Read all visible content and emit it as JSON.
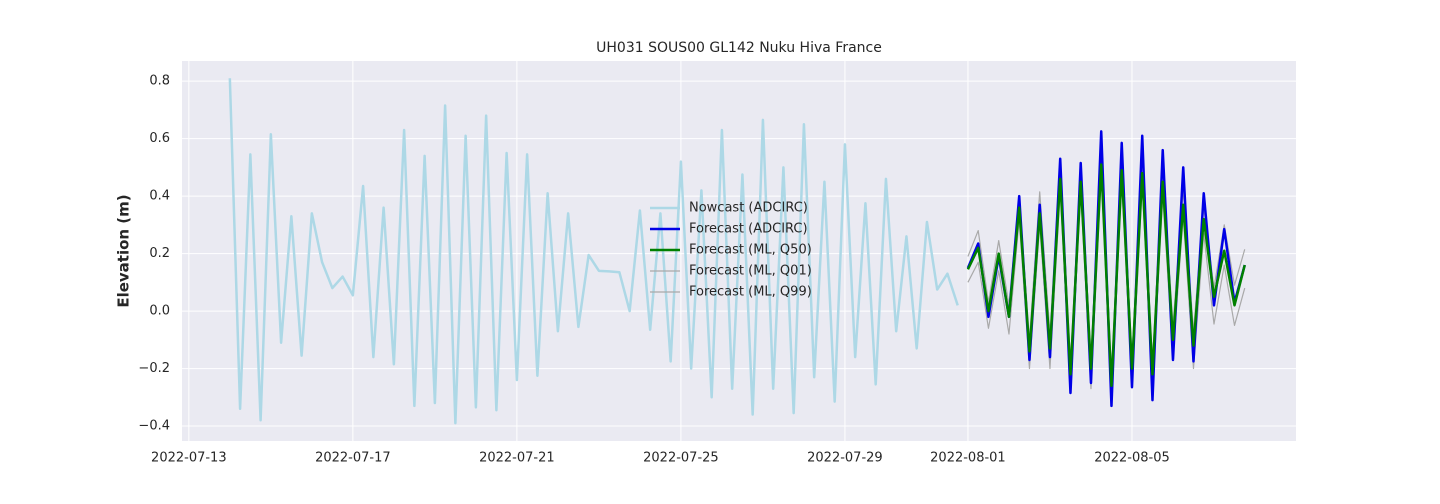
{
  "chart_data": {
    "type": "line",
    "title": "UH031 SOUS00 GL142 Nuku Hiva France",
    "ylabel": "Elevation (m)",
    "xlim": [
      "2022-07-12T20:00",
      "2022-08-09T00:00"
    ],
    "xticks": [
      "2022-07-13",
      "2022-07-17",
      "2022-07-21",
      "2022-07-25",
      "2022-07-29",
      "2022-08-01",
      "2022-08-05"
    ],
    "ylim": [
      -0.452,
      0.87
    ],
    "yticks": [
      {
        "value": -0.4,
        "label": "−0.4"
      },
      {
        "value": -0.2,
        "label": "−0.2"
      },
      {
        "value": 0,
        "label": "0.0"
      },
      0.2,
      0.4,
      0.6,
      0.8
    ],
    "grid": true,
    "legend": "center",
    "series": [
      {
        "name": "Nowcast (ADCIRC)",
        "color": "#add8e6",
        "linewidth": 2.5,
        "x": [
          "2022-07-14T00:00",
          "2022-07-14T06:00",
          "2022-07-14T12:00",
          "2022-07-14T18:00",
          "2022-07-15T00:00",
          "2022-07-15T06:00",
          "2022-07-15T12:00",
          "2022-07-15T18:00",
          "2022-07-16T00:00",
          "2022-07-16T06:00",
          "2022-07-16T12:00",
          "2022-07-16T18:00",
          "2022-07-17T00:00",
          "2022-07-17T06:00",
          "2022-07-17T12:00",
          "2022-07-17T18:00",
          "2022-07-18T00:00",
          "2022-07-18T06:00",
          "2022-07-18T12:00",
          "2022-07-18T18:00",
          "2022-07-19T00:00",
          "2022-07-19T06:00",
          "2022-07-19T12:00",
          "2022-07-19T18:00",
          "2022-07-20T00:00",
          "2022-07-20T06:00",
          "2022-07-20T12:00",
          "2022-07-20T18:00",
          "2022-07-21T00:00",
          "2022-07-21T06:00",
          "2022-07-21T12:00",
          "2022-07-21T18:00",
          "2022-07-22T00:00",
          "2022-07-22T06:00",
          "2022-07-22T12:00",
          "2022-07-22T18:00",
          "2022-07-23T00:00",
          "2022-07-23T06:00",
          "2022-07-23T12:00",
          "2022-07-23T18:00",
          "2022-07-24T00:00",
          "2022-07-24T06:00",
          "2022-07-24T12:00",
          "2022-07-24T18:00",
          "2022-07-25T00:00",
          "2022-07-25T06:00",
          "2022-07-25T12:00",
          "2022-07-25T18:00",
          "2022-07-26T00:00",
          "2022-07-26T06:00",
          "2022-07-26T12:00",
          "2022-07-26T18:00",
          "2022-07-27T00:00",
          "2022-07-27T06:00",
          "2022-07-27T12:00",
          "2022-07-27T18:00",
          "2022-07-28T00:00",
          "2022-07-28T06:00",
          "2022-07-28T12:00",
          "2022-07-28T18:00",
          "2022-07-29T00:00",
          "2022-07-29T06:00",
          "2022-07-29T12:00",
          "2022-07-29T18:00",
          "2022-07-30T00:00",
          "2022-07-30T06:00",
          "2022-07-30T12:00",
          "2022-07-30T18:00",
          "2022-07-31T00:00",
          "2022-07-31T06:00",
          "2022-07-31T12:00",
          "2022-07-31T18:00"
        ],
        "values": [
          0.81,
          -0.34,
          0.545,
          -0.38,
          0.615,
          -0.11,
          0.33,
          -0.155,
          0.34,
          0.17,
          0.08,
          0.12,
          0.055,
          0.435,
          -0.16,
          0.36,
          -0.185,
          0.63,
          -0.33,
          0.54,
          -0.32,
          0.715,
          -0.39,
          0.61,
          -0.335,
          0.68,
          -0.345,
          0.55,
          -0.24,
          0.545,
          -0.225,
          0.41,
          -0.07,
          0.34,
          -0.055,
          0.195,
          0.14,
          0.138,
          0.135,
          0.0,
          0.35,
          -0.065,
          0.34,
          -0.175,
          0.52,
          -0.2,
          0.42,
          -0.3,
          0.63,
          -0.27,
          0.475,
          -0.36,
          0.665,
          -0.27,
          0.5,
          -0.355,
          0.65,
          -0.23,
          0.45,
          -0.315,
          0.58,
          -0.16,
          0.375,
          -0.255,
          0.46,
          -0.07,
          0.26,
          -0.13,
          0.31,
          0.075,
          0.13,
          0.02
        ]
      },
      {
        "name": "Forecast (ADCIRC)",
        "color": "#0000e6",
        "linewidth": 2.5,
        "x": [
          "2022-08-01T00:00",
          "2022-08-01T06:00",
          "2022-08-01T12:00",
          "2022-08-01T18:00",
          "2022-08-02T00:00",
          "2022-08-02T06:00",
          "2022-08-02T12:00",
          "2022-08-02T18:00",
          "2022-08-03T00:00",
          "2022-08-03T06:00",
          "2022-08-03T12:00",
          "2022-08-03T18:00",
          "2022-08-04T00:00",
          "2022-08-04T06:00",
          "2022-08-04T12:00",
          "2022-08-04T18:00",
          "2022-08-05T00:00",
          "2022-08-05T06:00",
          "2022-08-05T12:00",
          "2022-08-05T18:00",
          "2022-08-06T00:00",
          "2022-08-06T06:00",
          "2022-08-06T12:00",
          "2022-08-06T18:00",
          "2022-08-07T00:00",
          "2022-08-07T06:00",
          "2022-08-07T12:00",
          "2022-08-07T18:00"
        ],
        "values": [
          0.15,
          0.235,
          -0.02,
          0.19,
          -0.02,
          0.4,
          -0.17,
          0.37,
          -0.16,
          0.53,
          -0.285,
          0.515,
          -0.25,
          0.625,
          -0.33,
          0.585,
          -0.265,
          0.61,
          -0.31,
          0.56,
          -0.17,
          0.5,
          -0.175,
          0.41,
          0.02,
          0.285,
          0.03,
          0.16
        ]
      },
      {
        "name": "Forecast (ML, Q50)",
        "color": "#008000",
        "linewidth": 2.5,
        "x": [
          "2022-08-01T00:00",
          "2022-08-01T06:00",
          "2022-08-01T12:00",
          "2022-08-01T18:00",
          "2022-08-02T00:00",
          "2022-08-02T06:00",
          "2022-08-02T12:00",
          "2022-08-02T18:00",
          "2022-08-03T00:00",
          "2022-08-03T06:00",
          "2022-08-03T12:00",
          "2022-08-03T18:00",
          "2022-08-04T00:00",
          "2022-08-04T06:00",
          "2022-08-04T12:00",
          "2022-08-04T18:00",
          "2022-08-05T00:00",
          "2022-08-05T06:00",
          "2022-08-05T12:00",
          "2022-08-05T18:00",
          "2022-08-06T00:00",
          "2022-08-06T06:00",
          "2022-08-06T12:00",
          "2022-08-06T18:00",
          "2022-08-07T00:00",
          "2022-08-07T06:00",
          "2022-08-07T12:00",
          "2022-08-07T18:00"
        ],
        "values": [
          0.145,
          0.22,
          0.0,
          0.2,
          -0.02,
          0.36,
          -0.14,
          0.34,
          -0.13,
          0.46,
          -0.22,
          0.45,
          -0.2,
          0.51,
          -0.26,
          0.49,
          -0.2,
          0.48,
          -0.22,
          0.45,
          -0.1,
          0.37,
          -0.12,
          0.32,
          0.05,
          0.21,
          0.02,
          0.16
        ]
      },
      {
        "name": "Forecast (ML, Q01)",
        "color": "#a9a9a9",
        "linewidth": 1.2,
        "x": [
          "2022-08-01T00:00",
          "2022-08-01T06:00",
          "2022-08-01T12:00",
          "2022-08-01T18:00",
          "2022-08-02T00:00",
          "2022-08-02T06:00",
          "2022-08-02T12:00",
          "2022-08-02T18:00",
          "2022-08-03T00:00",
          "2022-08-03T06:00",
          "2022-08-03T12:00",
          "2022-08-03T18:00",
          "2022-08-04T00:00",
          "2022-08-04T06:00",
          "2022-08-04T12:00",
          "2022-08-04T18:00",
          "2022-08-05T00:00",
          "2022-08-05T06:00",
          "2022-08-05T12:00",
          "2022-08-05T18:00",
          "2022-08-06T00:00",
          "2022-08-06T06:00",
          "2022-08-06T12:00",
          "2022-08-06T18:00",
          "2022-08-07T00:00",
          "2022-08-07T06:00",
          "2022-08-07T12:00",
          "2022-08-07T18:00"
        ],
        "values": [
          0.1,
          0.17,
          -0.06,
          0.14,
          -0.08,
          0.32,
          -0.2,
          0.3,
          -0.2,
          0.42,
          -0.27,
          0.42,
          -0.27,
          0.48,
          -0.3,
          0.45,
          -0.26,
          0.44,
          -0.27,
          0.4,
          -0.16,
          0.33,
          -0.2,
          0.27,
          -0.045,
          0.16,
          -0.05,
          0.08
        ]
      },
      {
        "name": "Forecast (ML, Q99)",
        "color": "#a9a9a9",
        "linewidth": 1.2,
        "x": [
          "2022-08-01T00:00",
          "2022-08-01T06:00",
          "2022-08-01T12:00",
          "2022-08-01T18:00",
          "2022-08-02T00:00",
          "2022-08-02T06:00",
          "2022-08-02T12:00",
          "2022-08-02T18:00",
          "2022-08-03T00:00",
          "2022-08-03T06:00",
          "2022-08-03T12:00",
          "2022-08-03T18:00",
          "2022-08-04T00:00",
          "2022-08-04T06:00",
          "2022-08-04T12:00",
          "2022-08-04T18:00",
          "2022-08-05T00:00",
          "2022-08-05T06:00",
          "2022-08-05T12:00",
          "2022-08-05T18:00",
          "2022-08-06T00:00",
          "2022-08-06T06:00",
          "2022-08-06T12:00",
          "2022-08-06T18:00",
          "2022-08-07T00:00",
          "2022-08-07T06:00",
          "2022-08-07T12:00",
          "2022-08-07T18:00"
        ],
        "values": [
          0.19,
          0.28,
          0.03,
          0.245,
          0.02,
          0.4,
          -0.1,
          0.415,
          -0.08,
          0.53,
          -0.18,
          0.5,
          -0.16,
          0.55,
          -0.22,
          0.53,
          -0.16,
          0.52,
          -0.18,
          0.5,
          -0.05,
          0.42,
          -0.07,
          0.36,
          0.08,
          0.3,
          0.09,
          0.215
        ]
      }
    ]
  }
}
